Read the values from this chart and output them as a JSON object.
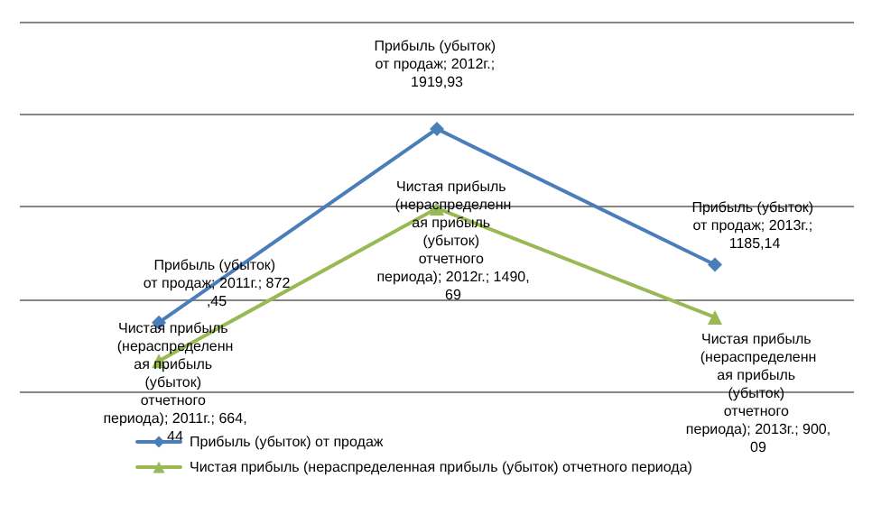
{
  "chart_data": {
    "type": "line",
    "categories": [
      null,
      null,
      null
    ],
    "series": [
      {
        "name": "Прибыль (убыток) от продаж",
        "color": "#4a7ebb",
        "marker": "diamond",
        "values": [
          872.45,
          1919.93,
          1185.14
        ],
        "value_labels": [
          "Прибыль (убыток) от продаж; 2011г.; 872,45",
          "Прибыль (убыток) от продаж; 2012г.; 1919,93",
          "Прибыль (убыток) от продаж; 2013г.; 1185,14"
        ]
      },
      {
        "name": "Чистая прибыль (нераспределенная прибыль (убыток) отчетного периода)",
        "color": "#98b954",
        "marker": "triangle",
        "values": [
          664.44,
          1490.69,
          900.09
        ],
        "value_labels": [
          "Чистая прибыль (нераспределенная прибыль (убыток) отчетного периода); 2011г.; 664,44",
          "Чистая прибыль (нераспределенная прибыль (убыток) отчетного периода); 2012г.; 1490,69",
          "Чистая прибыль (нераспределенная прибыль (убыток) отчетного периода); 2013г.; 900,09"
        ]
      }
    ],
    "ylim": [
      500,
      2500
    ],
    "yticks": [
      {
        "value": 500,
        "label": null
      },
      {
        "value": 1000,
        "label": null
      },
      {
        "value": 1500,
        "label": null
      },
      {
        "value": 2000,
        "label": null
      },
      {
        "value": 2500,
        "label": null
      }
    ],
    "grid": "y",
    "legend": "bottom"
  }
}
